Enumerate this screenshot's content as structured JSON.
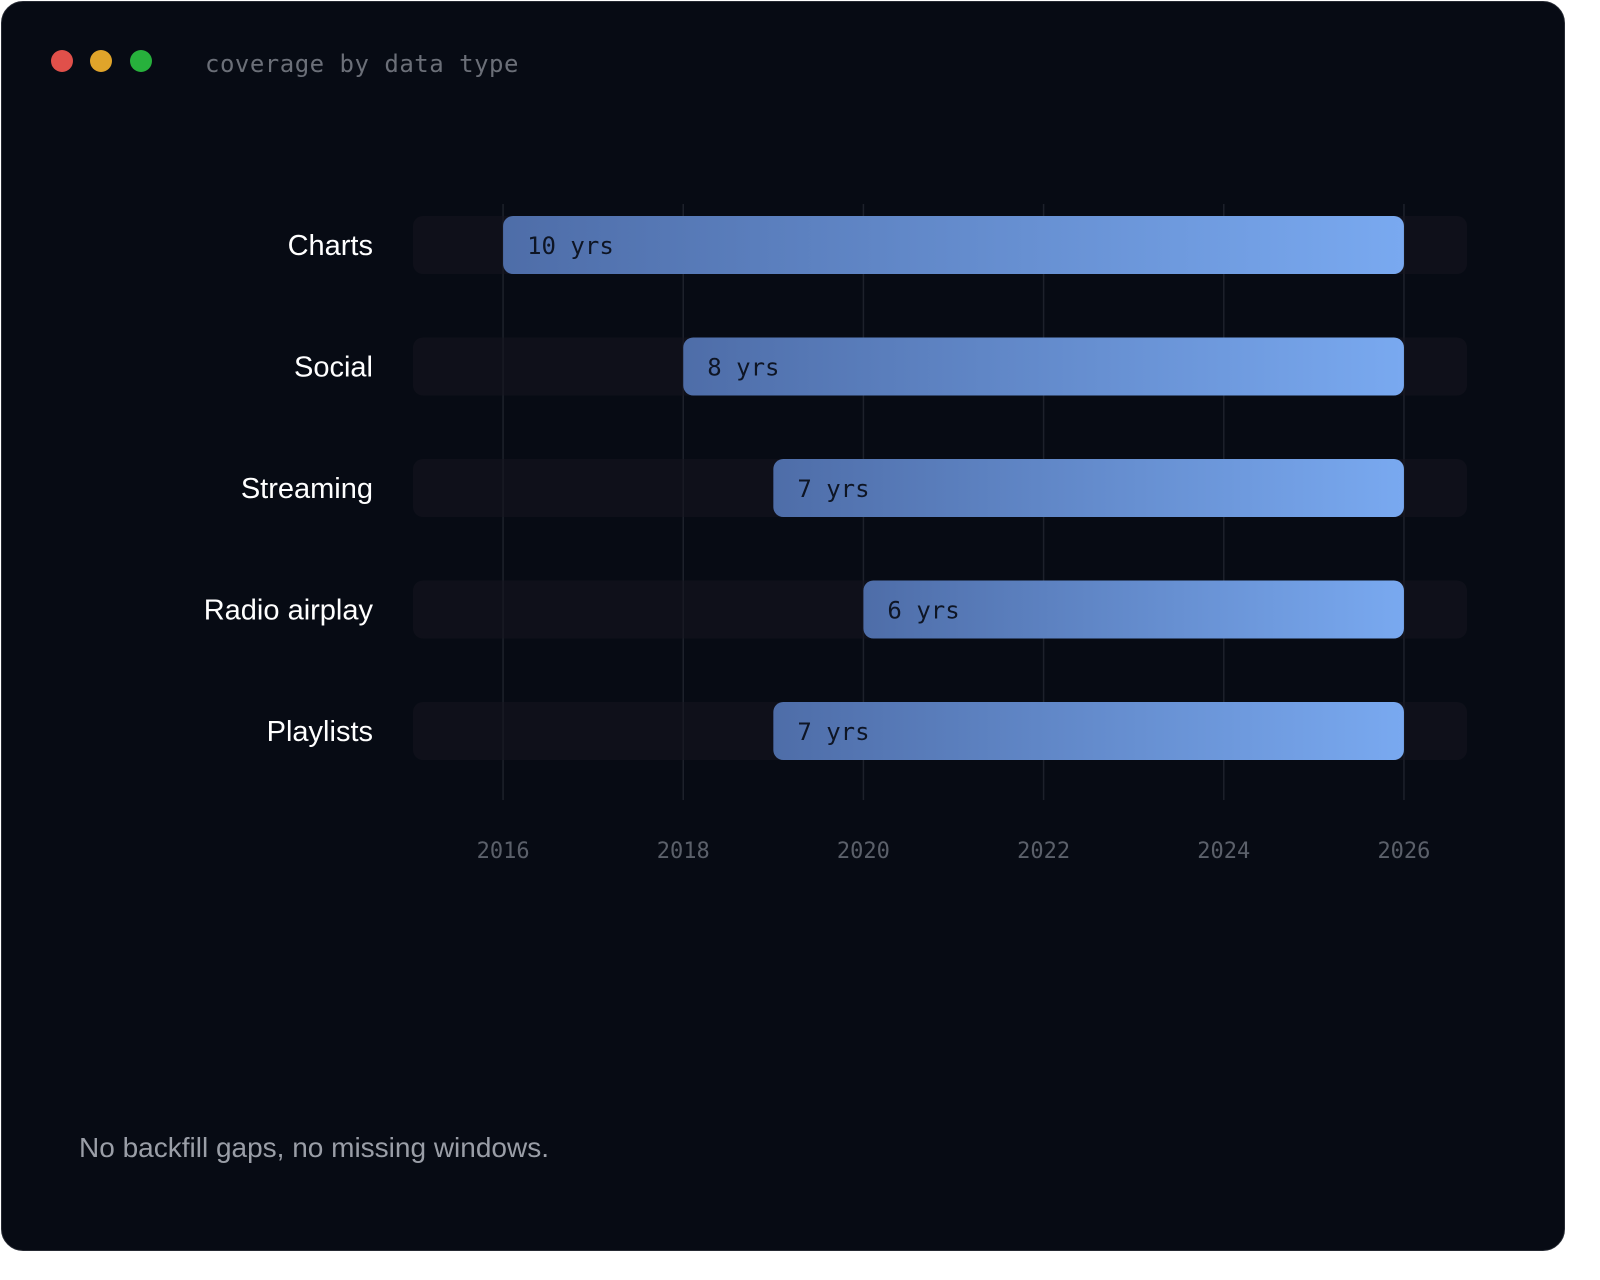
{
  "window": {
    "title": "coverage by data type",
    "controls": [
      {
        "name": "close",
        "color": "#e0504a"
      },
      {
        "name": "minimize",
        "color": "#e0a42a"
      },
      {
        "name": "maximize",
        "color": "#27b13c"
      }
    ]
  },
  "footer": {
    "note": "No backfill gaps, no missing windows."
  },
  "colors": {
    "background": "#070b14",
    "track": "#15161f",
    "bar_start": "#4e6da8",
    "bar_end": "#79a9f0",
    "grid": "#1d212b"
  },
  "chart_data": {
    "type": "bar",
    "orientation": "horizontal",
    "title": "coverage by data type",
    "categories": [
      "Charts",
      "Social",
      "Streaming",
      "Radio airplay",
      "Playlists"
    ],
    "series": [
      {
        "start": [
          2016,
          2018,
          2019,
          2020,
          2019
        ],
        "values": [
          10,
          8,
          7,
          6,
          7
        ],
        "labels": [
          "10 yrs",
          "8 yrs",
          "7 yrs",
          "6 yrs",
          "7 yrs"
        ]
      }
    ],
    "xticks": [
      "2016",
      "2018",
      "2020",
      "2022",
      "2024",
      "2026"
    ],
    "xlim": [
      2015,
      2026.7
    ],
    "grid": true,
    "legend": "none"
  }
}
